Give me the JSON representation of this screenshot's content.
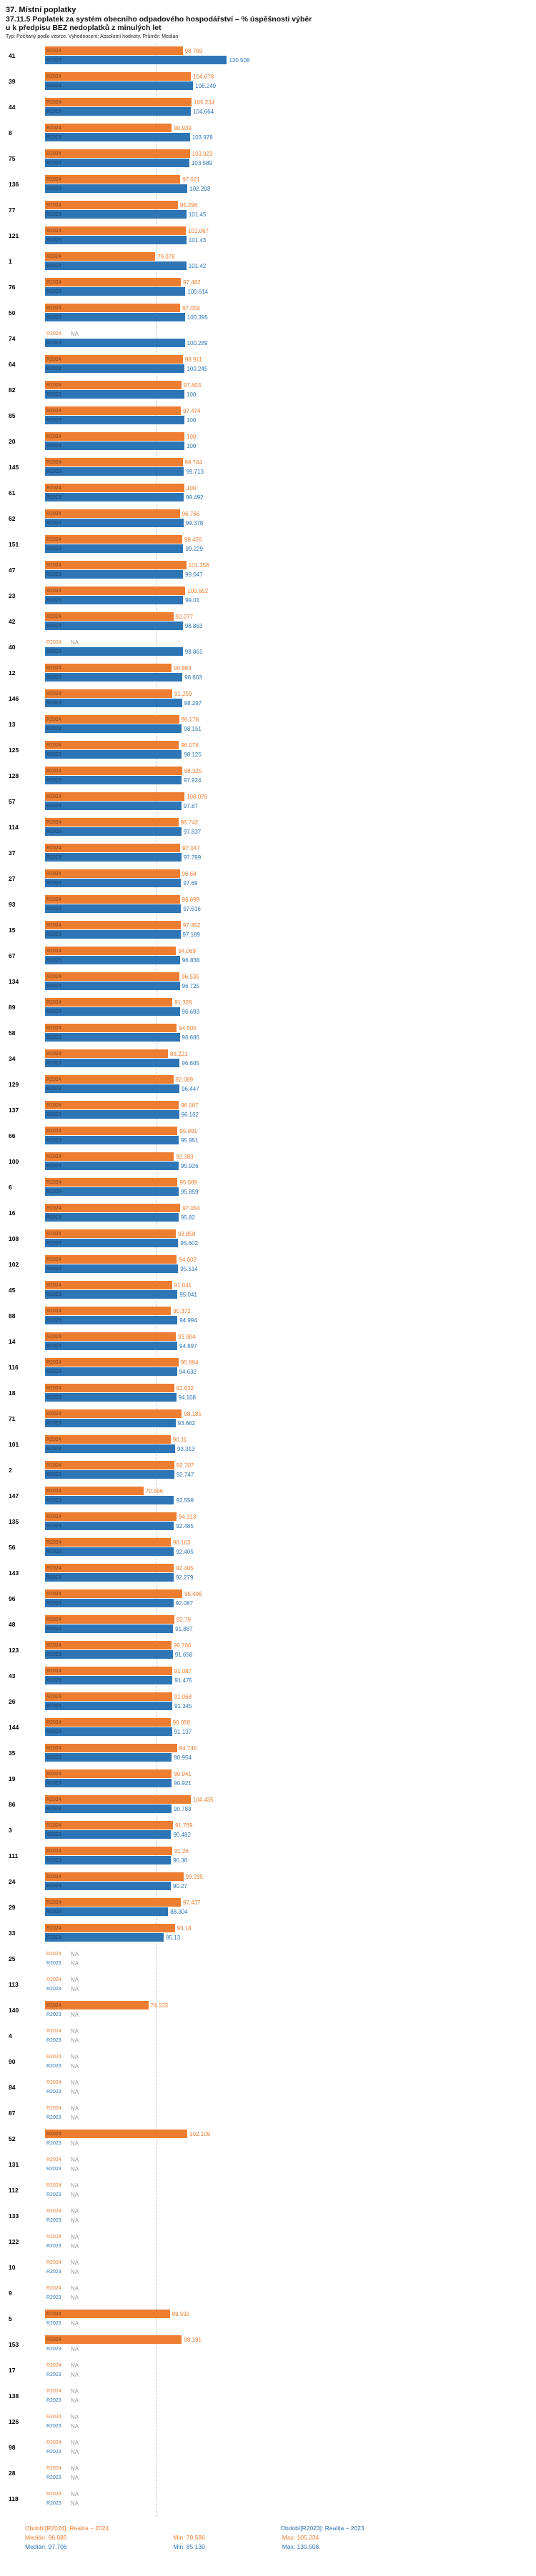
{
  "header": {
    "title": "37. Místní poplatky",
    "subtitle_line1": "37.11.5 Poplatek za systém obecního odpadového hospodářství  – % úspěšnosti výběr",
    "subtitle_line2": "u k předpisu BEZ nedoplatků z minulých let",
    "meta": "Typ: Počítaný podle vzorce. Vyhodnocení: Absolutní hodnoty. Průměr: Medián"
  },
  "footer": {
    "legend_r2024": "Období[R2024]: Realita – 2024",
    "legend_r2023": "Období[R2023]: Realita – 2023",
    "r2024_median": "Medián: 96.685",
    "r2024_min": "Min: 70.596",
    "r2024_max": "Max: 105.234",
    "r2023_median": "Medián: 97.706",
    "r2023_min": "Min: 85.130",
    "r2023_max": "Max: 130.508."
  },
  "chart_data": {
    "type": "bar",
    "orientation": "horizontal",
    "value_unit": "%",
    "title": "37.11.5 Poplatek za systém obecního odpadového hospodářství – % úspěšnosti výběru k předpisu BEZ nedoplatků z minulých let",
    "legend_position": "bottom",
    "axis": {
      "min": 0,
      "max": 135,
      "gridline_at": 80
    },
    "series": [
      {
        "name": "R2024",
        "label": "R2024",
        "color": "#ED7D31",
        "period": "Realita – 2024"
      },
      {
        "name": "R2023",
        "label": "R2023",
        "color": "#2E75B6",
        "period": "Realita – 2023"
      }
    ],
    "medians": {
      "R2024": 96.685,
      "R2023": 97.706
    },
    "stats": {
      "R2024": {
        "median": 96.685,
        "min": 70.596,
        "max": 105.234
      },
      "R2023": {
        "median": 97.706,
        "min": 85.13,
        "max": 130.508
      }
    },
    "rows": [
      {
        "id": "41",
        "R2024": "98.769",
        "R2023": "130.508"
      },
      {
        "id": "39",
        "R2024": "104.678",
        "R2023": "106.249"
      },
      {
        "id": "44",
        "R2024": "105.234",
        "R2023": "104.664"
      },
      {
        "id": "8",
        "R2024": "90.939",
        "R2023": "103.978"
      },
      {
        "id": "75",
        "R2024": "103.923",
        "R2023": "103.589"
      },
      {
        "id": "136",
        "R2024": "97.021",
        "R2023": "102.203"
      },
      {
        "id": "77",
        "R2024": "95.296",
        "R2023": "101.45"
      },
      {
        "id": "121",
        "R2024": "101.067",
        "R2023": "101.43"
      },
      {
        "id": "1",
        "R2024": "79.078",
        "R2023": "101.42"
      },
      {
        "id": "76",
        "R2024": "97.482",
        "R2023": "100.614"
      },
      {
        "id": "50",
        "R2024": "97.059",
        "R2023": "100.395"
      },
      {
        "id": "74",
        "R2024": "NA",
        "R2023": "100.289"
      },
      {
        "id": "64",
        "R2024": "98.911",
        "R2023": "100.245"
      },
      {
        "id": "82",
        "R2024": "97.803",
        "R2023": "100"
      },
      {
        "id": "85",
        "R2024": "97.474",
        "R2023": "100"
      },
      {
        "id": "20",
        "R2024": "100",
        "R2023": "100"
      },
      {
        "id": "145",
        "R2024": "98.744",
        "R2023": "99.713"
      },
      {
        "id": "61",
        "R2024": "100",
        "R2023": "99.492"
      },
      {
        "id": "62",
        "R2024": "96.766",
        "R2023": "99.378"
      },
      {
        "id": "151",
        "R2024": "98.426",
        "R2023": "99.229"
      },
      {
        "id": "47",
        "R2024": "101.356",
        "R2023": "99.047"
      },
      {
        "id": "23",
        "R2024": "100.652",
        "R2023": "99.01"
      },
      {
        "id": "42",
        "R2024": "92.077",
        "R2023": "98.863"
      },
      {
        "id": "40",
        "R2024": "NA",
        "R2023": "98.861"
      },
      {
        "id": "12",
        "R2024": "90.863",
        "R2023": "98.603"
      },
      {
        "id": "146",
        "R2024": "91.259",
        "R2023": "98.297"
      },
      {
        "id": "13",
        "R2024": "96.178",
        "R2023": "98.151"
      },
      {
        "id": "125",
        "R2024": "96.076",
        "R2023": "98.125"
      },
      {
        "id": "128",
        "R2024": "98.325",
        "R2023": "97.924"
      },
      {
        "id": "57",
        "R2024": "100.079",
        "R2023": "97.87"
      },
      {
        "id": "114",
        "R2024": "95.742",
        "R2023": "97.837"
      },
      {
        "id": "37",
        "R2024": "97.047",
        "R2023": "97.799"
      },
      {
        "id": "27",
        "R2024": "96.68",
        "R2023": "97.69"
      },
      {
        "id": "93",
        "R2024": "96.698",
        "R2023": "97.616"
      },
      {
        "id": "15",
        "R2024": "97.352",
        "R2023": "97.189"
      },
      {
        "id": "67",
        "R2024": "94.069",
        "R2023": "96.838"
      },
      {
        "id": "134",
        "R2024": "96.535",
        "R2023": "96.725"
      },
      {
        "id": "89",
        "R2024": "91.328",
        "R2023": "96.693"
      },
      {
        "id": "58",
        "R2024": "94.505",
        "R2023": "96.685"
      },
      {
        "id": "34",
        "R2024": "88.221",
        "R2023": "96.605"
      },
      {
        "id": "129",
        "R2024": "92.089",
        "R2023": "96.447"
      },
      {
        "id": "137",
        "R2024": "96.007",
        "R2023": "96.162"
      },
      {
        "id": "66",
        "R2024": "95.091",
        "R2023": "95.951"
      },
      {
        "id": "100",
        "R2024": "92.383",
        "R2023": "95.926"
      },
      {
        "id": "6",
        "R2024": "95.089",
        "R2023": "95.859"
      },
      {
        "id": "16",
        "R2024": "97.054",
        "R2023": "95.82"
      },
      {
        "id": "108",
        "R2024": "93.858",
        "R2023": "95.602"
      },
      {
        "id": "102",
        "R2024": "94.602",
        "R2023": "95.514"
      },
      {
        "id": "45",
        "R2024": "91.041",
        "R2023": "95.041"
      },
      {
        "id": "88",
        "R2024": "90.372",
        "R2023": "94.994"
      },
      {
        "id": "14",
        "R2024": "93.904",
        "R2023": "94.897"
      },
      {
        "id": "116",
        "R2024": "95.894",
        "R2023": "94.632"
      },
      {
        "id": "18",
        "R2024": "92.632",
        "R2023": "94.108"
      },
      {
        "id": "71",
        "R2024": "98.185",
        "R2023": "93.662"
      },
      {
        "id": "101",
        "R2024": "90.11",
        "R2023": "93.313"
      },
      {
        "id": "2",
        "R2024": "92.707",
        "R2023": "92.747"
      },
      {
        "id": "147",
        "R2024": "70.596",
        "R2023": "92.559"
      },
      {
        "id": "135",
        "R2024": "94.313",
        "R2023": "92.485"
      },
      {
        "id": "56",
        "R2024": "90.163",
        "R2023": "92.405"
      },
      {
        "id": "143",
        "R2024": "92.405",
        "R2023": "92.279"
      },
      {
        "id": "96",
        "R2024": "98.496",
        "R2023": "92.087"
      },
      {
        "id": "48",
        "R2024": "92.79",
        "R2023": "91.887"
      },
      {
        "id": "123",
        "R2024": "90.706",
        "R2023": "91.658"
      },
      {
        "id": "43",
        "R2024": "91.087",
        "R2023": "91.475"
      },
      {
        "id": "26",
        "R2024": "91.068",
        "R2023": "91.345"
      },
      {
        "id": "144",
        "R2024": "90.058",
        "R2023": "91.137"
      },
      {
        "id": "35",
        "R2024": "94.745",
        "R2023": "90.954"
      },
      {
        "id": "19",
        "R2024": "90.941",
        "R2023": "90.921"
      },
      {
        "id": "86",
        "R2024": "104.435",
        "R2023": "90.783"
      },
      {
        "id": "3",
        "R2024": "91.769",
        "R2023": "90.482"
      },
      {
        "id": "111",
        "R2024": "91.26",
        "R2023": "90.36"
      },
      {
        "id": "24",
        "R2024": "99.295",
        "R2023": "90.27"
      },
      {
        "id": "29",
        "R2024": "97.437",
        "R2023": "88.304"
      },
      {
        "id": "33",
        "R2024": "93.18",
        "R2023": "85.13"
      },
      {
        "id": "25",
        "R2024": "NA",
        "R2023": "NA"
      },
      {
        "id": "113",
        "R2024": "NA",
        "R2023": "NA"
      },
      {
        "id": "140",
        "R2024": "74.103",
        "R2023": "NA"
      },
      {
        "id": "4",
        "R2024": "NA",
        "R2023": "NA"
      },
      {
        "id": "90",
        "R2024": "NA",
        "R2023": "NA"
      },
      {
        "id": "84",
        "R2024": "NA",
        "R2023": "NA"
      },
      {
        "id": "87",
        "R2024": "NA",
        "R2023": "NA"
      },
      {
        "id": "52",
        "R2024": "102.109",
        "R2023": "NA"
      },
      {
        "id": "131",
        "R2024": "NA",
        "R2023": "NA"
      },
      {
        "id": "112",
        "R2024": "NA",
        "R2023": "NA"
      },
      {
        "id": "133",
        "R2024": "NA",
        "R2023": "NA"
      },
      {
        "id": "122",
        "R2024": "NA",
        "R2023": "NA"
      },
      {
        "id": "10",
        "R2024": "NA",
        "R2023": "NA"
      },
      {
        "id": "9",
        "R2024": "NA",
        "R2023": "NA"
      },
      {
        "id": "5",
        "R2024": "89.592",
        "R2023": "NA"
      },
      {
        "id": "153",
        "R2024": "98.191",
        "R2023": "NA"
      },
      {
        "id": "17",
        "R2024": "NA",
        "R2023": "NA"
      },
      {
        "id": "138",
        "R2024": "NA",
        "R2023": "NA"
      },
      {
        "id": "126",
        "R2024": "NA",
        "R2023": "NA"
      },
      {
        "id": "98",
        "R2024": "NA",
        "R2023": "NA"
      },
      {
        "id": "28",
        "R2024": "NA",
        "R2023": "NA"
      },
      {
        "id": "118",
        "R2024": "NA",
        "R2023": "NA"
      }
    ]
  }
}
